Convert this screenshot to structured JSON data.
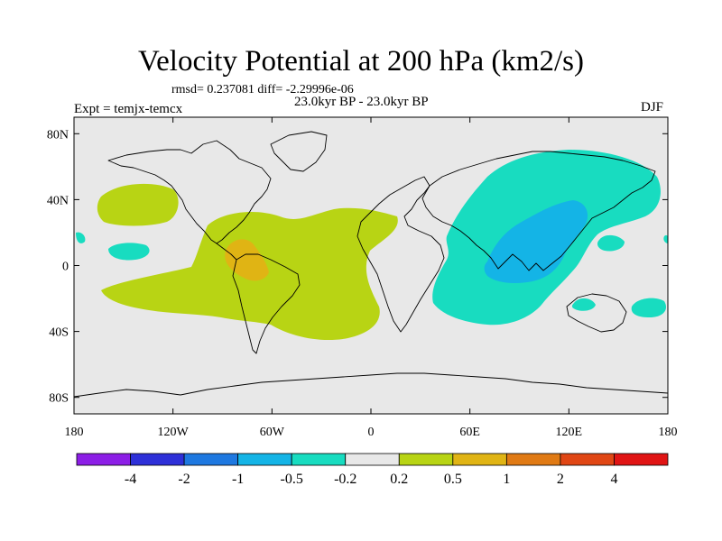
{
  "title": "Velocity Potential at 200 hPa (km2/s)",
  "stats": "rmsd= 0.237081 diff= -2.29996e-06",
  "expt": "Expt = temjx-temcx",
  "period": "23.0kyr BP - 23.0kyr BP",
  "season": "DJF",
  "axes": {
    "x_ticks": [
      {
        "value": -180,
        "label": "180"
      },
      {
        "value": -120,
        "label": "120W"
      },
      {
        "value": -60,
        "label": "60W"
      },
      {
        "value": 0,
        "label": "0"
      },
      {
        "value": 60,
        "label": "60E"
      },
      {
        "value": 120,
        "label": "120E"
      },
      {
        "value": 180,
        "label": "180"
      }
    ],
    "y_ticks": [
      {
        "value": 80,
        "label": "80N"
      },
      {
        "value": 40,
        "label": "40N"
      },
      {
        "value": 0,
        "label": "0"
      },
      {
        "value": -40,
        "label": "40S"
      },
      {
        "value": -80,
        "label": "80S"
      }
    ]
  },
  "colorbar": {
    "colors": [
      "#8c1ee6",
      "#2e30d8",
      "#1e78e0",
      "#14b4e6",
      "#18dcc0",
      "#e8e8e8",
      "#b8d414",
      "#e0b414",
      "#e07a14",
      "#e04614",
      "#e01414"
    ],
    "labels": [
      "-4",
      "-2",
      "-1",
      "-0.5",
      "-0.2",
      "0.2",
      "0.5",
      "1",
      "2",
      "4"
    ]
  },
  "colors": {
    "background": "#e8e8e8",
    "positive_weak": "#b8d414",
    "positive_mid": "#e0b414",
    "negative_weak": "#18dcc0",
    "negative_mid": "#14b4e6"
  }
}
